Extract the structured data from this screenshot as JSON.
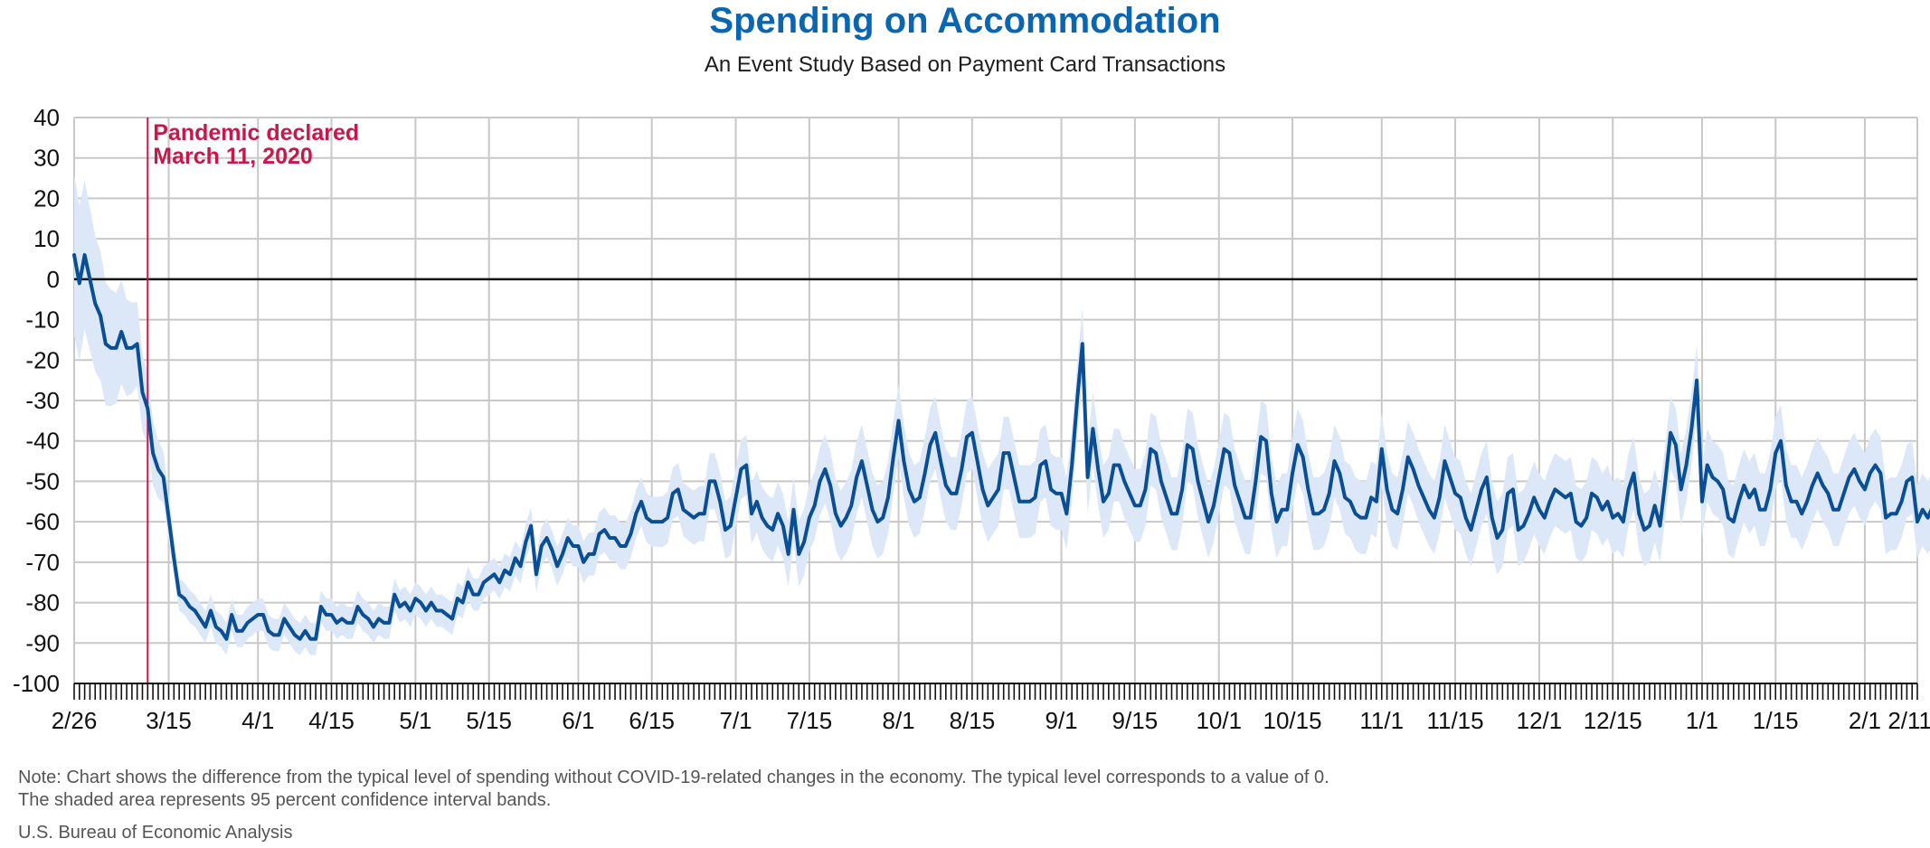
{
  "title": "Spending on Accommodation",
  "subtitle": "An Event Study Based on Payment Card Transactions",
  "note_line1": "Note: Chart shows the difference from the typical level of spending without COVID-19-related changes in the economy. The typical level corresponds to a value of 0.",
  "note_line2": "The shaded area represents 95 percent confidence interval bands.",
  "source": "U.S. Bureau of Economic Analysis",
  "colors": {
    "title": "#0b66b2",
    "line": "#0a4f96",
    "band": "#dce8f7",
    "event": "#c8174a",
    "grid": "#c8c8c8",
    "zero": "#111111"
  },
  "chart_data": {
    "type": "line",
    "title": "Spending on Accommodation",
    "subtitle": "An Event Study Based on Payment Card Transactions",
    "ylim": [
      -100,
      40
    ],
    "yticks": [
      40,
      30,
      20,
      10,
      0,
      -10,
      -20,
      -30,
      -40,
      -50,
      -60,
      -70,
      -80,
      -90,
      -100
    ],
    "xrange": [
      "2020-02-26",
      "2021-02-11"
    ],
    "xticks": [
      {
        "date": "2020-02-26",
        "label": "2/26"
      },
      {
        "date": "2020-03-15",
        "label": "3/15"
      },
      {
        "date": "2020-04-01",
        "label": "4/1"
      },
      {
        "date": "2020-04-15",
        "label": "4/15"
      },
      {
        "date": "2020-05-01",
        "label": "5/1"
      },
      {
        "date": "2020-05-15",
        "label": "5/15"
      },
      {
        "date": "2020-06-01",
        "label": "6/1"
      },
      {
        "date": "2020-06-15",
        "label": "6/15"
      },
      {
        "date": "2020-07-01",
        "label": "7/1"
      },
      {
        "date": "2020-07-15",
        "label": "7/15"
      },
      {
        "date": "2020-08-01",
        "label": "8/1"
      },
      {
        "date": "2020-08-15",
        "label": "8/15"
      },
      {
        "date": "2020-09-01",
        "label": "9/1"
      },
      {
        "date": "2020-09-15",
        "label": "9/15"
      },
      {
        "date": "2020-10-01",
        "label": "10/1"
      },
      {
        "date": "2020-10-15",
        "label": "10/15"
      },
      {
        "date": "2020-11-01",
        "label": "11/1"
      },
      {
        "date": "2020-11-15",
        "label": "11/15"
      },
      {
        "date": "2020-12-01",
        "label": "12/1"
      },
      {
        "date": "2020-12-15",
        "label": "12/15"
      },
      {
        "date": "2021-01-01",
        "label": "1/1"
      },
      {
        "date": "2021-01-15",
        "label": "1/15"
      },
      {
        "date": "2021-02-01",
        "label": "2/1"
      },
      {
        "date": "2021-02-11",
        "label": "2/11"
      }
    ],
    "grid": true,
    "event": {
      "date": "2020-03-11",
      "label_line1": "Pandemic declared",
      "label_line2": "March 11, 2020"
    },
    "series": [
      {
        "start_date": "2020-02-26",
        "values": [
          6,
          -1,
          6,
          0,
          -6,
          -9,
          -16,
          -17,
          -17,
          -13,
          -17,
          -17,
          -16,
          -28,
          -32,
          -43,
          -47,
          -49,
          -59,
          -69,
          -78,
          -79,
          -81,
          -82,
          -84,
          -86,
          -82,
          -86,
          -87,
          -89,
          -83,
          -87,
          -87,
          -85,
          -84,
          -83,
          -83,
          -87,
          -88,
          -88,
          -84,
          -86,
          -88,
          -89,
          -87,
          -89,
          -89,
          -81,
          -83,
          -83,
          -85,
          -84,
          -85,
          -85,
          -81,
          -83,
          -84,
          -86,
          -84,
          -85,
          -85,
          -78,
          -81,
          -80,
          -82,
          -79,
          -80,
          -82,
          -80,
          -82,
          -82,
          -83,
          -84,
          -79,
          -80,
          -75,
          -78,
          -78,
          -75,
          -74,
          -73,
          -75,
          -72,
          -73,
          -69,
          -71,
          -65,
          -61,
          -73,
          -66,
          -64,
          -67,
          -71,
          -68,
          -64,
          -66,
          -66,
          -70,
          -68,
          -68,
          -63,
          -62,
          -64,
          -64,
          -66,
          -66,
          -63,
          -58,
          -55,
          -59,
          -60,
          -60,
          -60,
          -59,
          -53,
          -52,
          -57,
          -58,
          -59,
          -58,
          -58,
          -50,
          -50,
          -55,
          -62,
          -61,
          -54,
          -47,
          -46,
          -58,
          -55,
          -59,
          -61,
          -62,
          -58,
          -61,
          -68,
          -57,
          -68,
          -65,
          -59,
          -56,
          -50,
          -47,
          -51,
          -58,
          -61,
          -59,
          -56,
          -49,
          -45,
          -51,
          -57,
          -60,
          -59,
          -54,
          -44,
          -35,
          -45,
          -52,
          -55,
          -54,
          -48,
          -41,
          -38,
          -45,
          -51,
          -53,
          -53,
          -47,
          -39,
          -38,
          -45,
          -52,
          -56,
          -54,
          -52,
          -43,
          -43,
          -49,
          -55,
          -55,
          -55,
          -54,
          -46,
          -45,
          -52,
          -53,
          -53,
          -58,
          -46,
          -30,
          -16,
          -49,
          -37,
          -47,
          -55,
          -53,
          -46,
          -46,
          -50,
          -53,
          -56,
          -56,
          -52,
          -42,
          -43,
          -50,
          -54,
          -58,
          -58,
          -52,
          -41,
          -42,
          -50,
          -55,
          -60,
          -56,
          -49,
          -42,
          -43,
          -51,
          -55,
          -59,
          -59,
          -50,
          -39,
          -40,
          -53,
          -60,
          -57,
          -57,
          -48,
          -41,
          -44,
          -52,
          -58,
          -58,
          -57,
          -53,
          -45,
          -48,
          -54,
          -55,
          -58,
          -59,
          -59,
          -54,
          -55,
          -42,
          -52,
          -57,
          -58,
          -52,
          -44,
          -47,
          -51,
          -54,
          -57,
          -59,
          -54,
          -45,
          -49,
          -53,
          -54,
          -59,
          -62,
          -57,
          -52,
          -49,
          -59,
          -64,
          -62,
          -53,
          -52,
          -62,
          -61,
          -58,
          -54,
          -57,
          -59,
          -55,
          -52,
          -53,
          -54,
          -53,
          -60,
          -61,
          -59,
          -53,
          -54,
          -57,
          -55,
          -59,
          -58,
          -60,
          -52,
          -48,
          -58,
          -62,
          -61,
          -56,
          -61,
          -50,
          -38,
          -41,
          -52,
          -46,
          -37,
          -25,
          -55,
          -46,
          -49,
          -50,
          -52,
          -59,
          -60,
          -55,
          -51,
          -54,
          -52,
          -57,
          -57,
          -52,
          -43,
          -40,
          -51,
          -55,
          -55,
          -58,
          -55,
          -51,
          -48,
          -51,
          -53,
          -57,
          -57,
          -53,
          -49,
          -47,
          -50,
          -52,
          -48,
          -46,
          -48,
          -59,
          -58,
          -58,
          -55,
          -50,
          -49,
          -60,
          -57,
          -59,
          -56,
          -48
        ]
      }
    ],
    "ci_band": {
      "half_width_start": 20,
      "half_width_lockdown": 4,
      "half_width_late": 9
    }
  }
}
